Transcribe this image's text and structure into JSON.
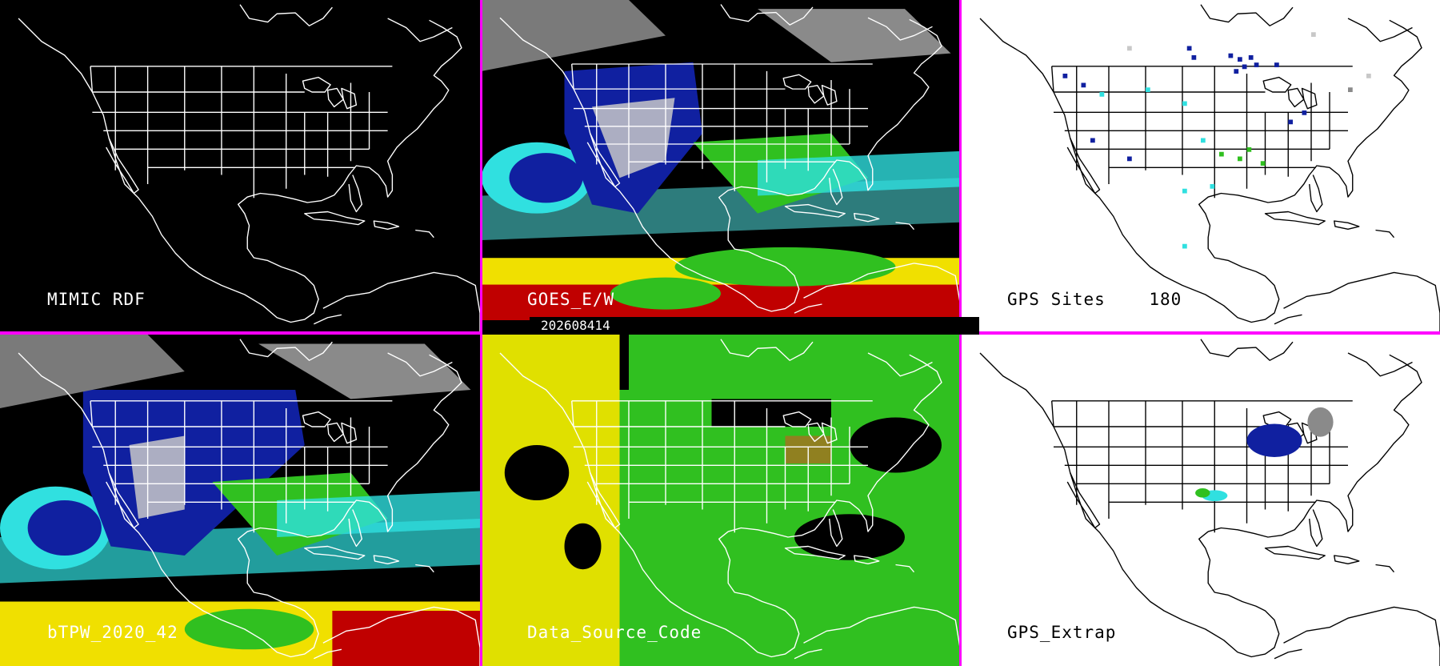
{
  "timestamp": "202608414",
  "colors": {
    "divider": "#ff00ff",
    "moist_high": "#ff0000",
    "moist_mid_high": "#f0e000",
    "moist_mid": "#30c020",
    "moist_mid_low": "#30e0e0",
    "moist_low": "#1020a0",
    "very_dry": "#c8c8c8",
    "no_data": "#000000",
    "source_yellow": "#e0e000",
    "source_green": "#30c020",
    "source_olive": "#908020"
  },
  "panels": [
    {
      "id": "mimic-rdf",
      "label": "MIMIC RDF",
      "background": "#000000"
    },
    {
      "id": "goes-ew",
      "label": "GOES_E/W",
      "background": "#000000"
    },
    {
      "id": "gps-sites",
      "label": "GPS Sites    180",
      "background": "#ffffff"
    },
    {
      "id": "btpw",
      "label": "bTPW_2020_42",
      "background": "#000000"
    },
    {
      "id": "data-source-code",
      "label": "Data_Source_Code",
      "background": "#000000"
    },
    {
      "id": "gps-extrap",
      "label": "GPS_Extrap",
      "background": "#ffffff"
    }
  ]
}
